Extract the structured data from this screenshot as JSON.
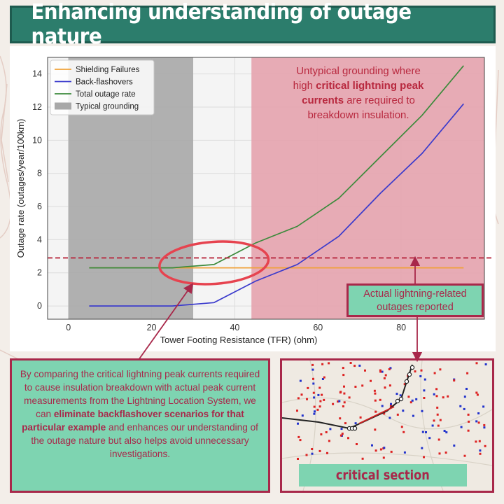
{
  "title": "Enhancing understanding of outage nature",
  "chart_data": {
    "type": "line",
    "xlabel": "Tower Footing Resistance (TFR) (ohm)",
    "ylabel": "Outage rate (outages/year/100km)",
    "xlim": [
      -5,
      100
    ],
    "ylim": [
      -0.8,
      15
    ],
    "xticks": [
      0,
      20,
      40,
      60,
      80
    ],
    "yticks": [
      0,
      2,
      4,
      6,
      8,
      10,
      12,
      14
    ],
    "grid": true,
    "legend_position": "top-left",
    "series": [
      {
        "name": "Shielding Failures",
        "color": "#f0a23a",
        "x": [
          5,
          25,
          35,
          45,
          55,
          65,
          75,
          85,
          95
        ],
        "y": [
          2.3,
          2.3,
          2.3,
          2.3,
          2.3,
          2.3,
          2.3,
          2.3,
          2.3
        ]
      },
      {
        "name": "Back-flashovers",
        "color": "#3a3acc",
        "x": [
          5,
          25,
          35,
          45,
          55,
          65,
          75,
          85,
          95
        ],
        "y": [
          0,
          0,
          0.2,
          1.5,
          2.5,
          4.2,
          6.8,
          9.2,
          12.2
        ]
      },
      {
        "name": "Total outage rate",
        "color": "#3b8a3b",
        "x": [
          5,
          25,
          35,
          45,
          55,
          65,
          75,
          85,
          95
        ],
        "y": [
          2.3,
          2.3,
          2.5,
          3.8,
          4.8,
          6.5,
          9.0,
          11.5,
          14.5
        ]
      }
    ],
    "regions": [
      {
        "name": "Typical grounding",
        "x": [
          0,
          30
        ],
        "color": "#a8a8a8"
      },
      {
        "name": "",
        "x": [
          44,
          100
        ],
        "color": "#e6a3ae"
      }
    ],
    "hline": {
      "y": 2.9,
      "color": "#b8283e"
    },
    "ellipse_center": {
      "x": 35,
      "y": 2.6
    },
    "annotation": {
      "line1": "Untypical grounding where",
      "line2_pre": "high ",
      "line2_bold": "critical lightning peak",
      "line3_bold": "currents",
      "line3_post": " are required to",
      "line4": "breakdown insulation."
    }
  },
  "actual_box": {
    "line1": "Actual lightning-related",
    "line2": "outages reported"
  },
  "explanation": {
    "part1": "By comparing the critical lightning peak currents required to cause insulation breakdown with actual peak current measurements from the Lightning Location System, we can ",
    "bold": "eliminate backflashover scenarios for that particular example",
    "part2": " and enhances our understanding of the outage nature but also helps avoid unnecessary investigations."
  },
  "map_caption": "critical section",
  "colors": {
    "accent": "#a8284a",
    "box_fill": "#7ed4b1",
    "title_fill": "#2c7d6c"
  }
}
